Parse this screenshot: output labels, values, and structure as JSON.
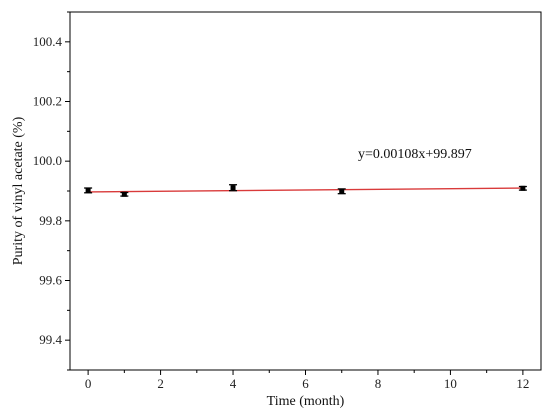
{
  "chart_data": {
    "type": "scatter",
    "title": "",
    "xlabel": "Time (month)",
    "ylabel": "Purity of vinyl acetate (%)",
    "xlim": [
      -0.5,
      12.5
    ],
    "ylim": [
      99.3,
      100.5
    ],
    "x_ticks": [
      0,
      2,
      4,
      6,
      8,
      10,
      12
    ],
    "x_tick_labels": [
      "0",
      "2",
      "4",
      "6",
      "8",
      "10",
      "12"
    ],
    "y_ticks": [
      99.4,
      99.6,
      99.8,
      100.0,
      100.2,
      100.4
    ],
    "y_tick_labels": [
      "99.4",
      "99.6",
      "99.8",
      "100.0",
      "100.2",
      "100.4"
    ],
    "grid": false,
    "series": [
      {
        "x": [
          0,
          1,
          4,
          7,
          12
        ],
        "y": [
          99.902,
          99.889,
          99.911,
          99.899,
          99.909
        ],
        "error": [
          0.008,
          0.006,
          0.01,
          0.008,
          0.006
        ],
        "marker_color": "#000000"
      }
    ],
    "fit": {
      "slope": 0.00108,
      "intercept": 99.897,
      "equation": "y=0.00108x+99.897",
      "color": "#d93a3a"
    }
  }
}
